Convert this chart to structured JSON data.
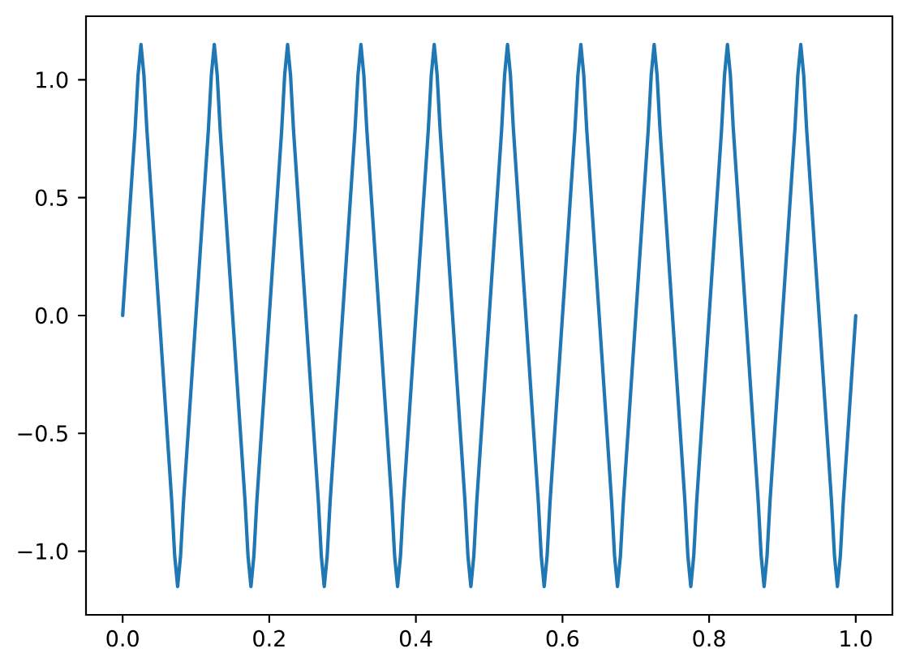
{
  "chart_data": {
    "type": "line",
    "x": [
      0,
      0.017,
      0.021,
      0.025,
      0.029,
      0.033,
      0.05,
      0.067,
      0.071,
      0.075,
      0.079,
      0.083,
      0.1,
      0.117,
      0.121,
      0.125,
      0.129,
      0.133,
      0.15,
      0.167,
      0.171,
      0.175,
      0.179,
      0.183,
      0.2,
      0.217,
      0.221,
      0.225,
      0.229,
      0.233,
      0.25,
      0.267,
      0.271,
      0.275,
      0.279,
      0.283,
      0.3,
      0.317,
      0.321,
      0.325,
      0.329,
      0.333,
      0.35,
      0.367,
      0.371,
      0.375,
      0.379,
      0.383,
      0.4,
      0.417,
      0.421,
      0.425,
      0.429,
      0.433,
      0.45,
      0.467,
      0.471,
      0.475,
      0.479,
      0.483,
      0.5,
      0.517,
      0.521,
      0.525,
      0.529,
      0.533,
      0.55,
      0.567,
      0.571,
      0.575,
      0.579,
      0.583,
      0.6,
      0.617,
      0.621,
      0.625,
      0.629,
      0.633,
      0.65,
      0.667,
      0.671,
      0.675,
      0.679,
      0.683,
      0.7,
      0.717,
      0.721,
      0.725,
      0.729,
      0.733,
      0.75,
      0.767,
      0.771,
      0.775,
      0.779,
      0.783,
      0.8,
      0.817,
      0.821,
      0.825,
      0.829,
      0.833,
      0.85,
      0.867,
      0.871,
      0.875,
      0.879,
      0.883,
      0.9,
      0.917,
      0.921,
      0.925,
      0.929,
      0.933,
      0.95,
      0.967,
      0.971,
      0.975,
      0.979,
      0.983,
      1
    ],
    "series": [
      {
        "color": "#1f77b4",
        "values": [
          0,
          0.79,
          1.02,
          1.15,
          1.02,
          0.79,
          0,
          -0.79,
          -1.02,
          -1.15,
          -1.02,
          -0.79,
          0,
          0.79,
          1.02,
          1.15,
          1.02,
          0.79,
          0,
          -0.79,
          -1.02,
          -1.15,
          -1.02,
          -0.79,
          0,
          0.79,
          1.02,
          1.15,
          1.02,
          0.79,
          0,
          -0.79,
          -1.02,
          -1.15,
          -1.02,
          -0.79,
          0,
          0.79,
          1.02,
          1.15,
          1.02,
          0.79,
          0,
          -0.79,
          -1.02,
          -1.15,
          -1.02,
          -0.79,
          0,
          0.79,
          1.02,
          1.15,
          1.02,
          0.79,
          0,
          -0.79,
          -1.02,
          -1.15,
          -1.02,
          -0.79,
          0,
          0.79,
          1.02,
          1.15,
          1.02,
          0.79,
          0,
          -0.79,
          -1.02,
          -1.15,
          -1.02,
          -0.79,
          0,
          0.79,
          1.02,
          1.15,
          1.02,
          0.79,
          0,
          -0.79,
          -1.02,
          -1.15,
          -1.02,
          -0.79,
          0,
          0.79,
          1.02,
          1.15,
          1.02,
          0.79,
          0,
          -0.79,
          -1.02,
          -1.15,
          -1.02,
          -0.79,
          0,
          0.79,
          1.02,
          1.15,
          1.02,
          0.79,
          0,
          -0.79,
          -1.02,
          -1.15,
          -1.02,
          -0.79,
          0,
          0.79,
          1.02,
          1.15,
          1.02,
          0.79,
          0,
          -0.79,
          -1.02,
          -1.15,
          -1.02,
          -0.79,
          0
        ]
      }
    ],
    "xlim": [
      -0.05,
      1.05
    ],
    "ylim": [
      -1.27,
      1.27
    ],
    "xticks": [
      {
        "value": 0,
        "label": "0.0"
      },
      {
        "value": 0.2,
        "label": "0.2"
      },
      {
        "value": 0.4,
        "label": "0.4"
      },
      {
        "value": 0.6,
        "label": "0.6"
      },
      {
        "value": 0.8,
        "label": "0.8"
      },
      {
        "value": 1,
        "label": "1.0"
      }
    ],
    "yticks": [
      {
        "value": -1,
        "label": "−1.0"
      },
      {
        "value": -0.5,
        "label": "−0.5"
      },
      {
        "value": 0,
        "label": "0.0"
      },
      {
        "value": 0.5,
        "label": "0.5"
      },
      {
        "value": 1,
        "label": "1.0"
      }
    ]
  }
}
